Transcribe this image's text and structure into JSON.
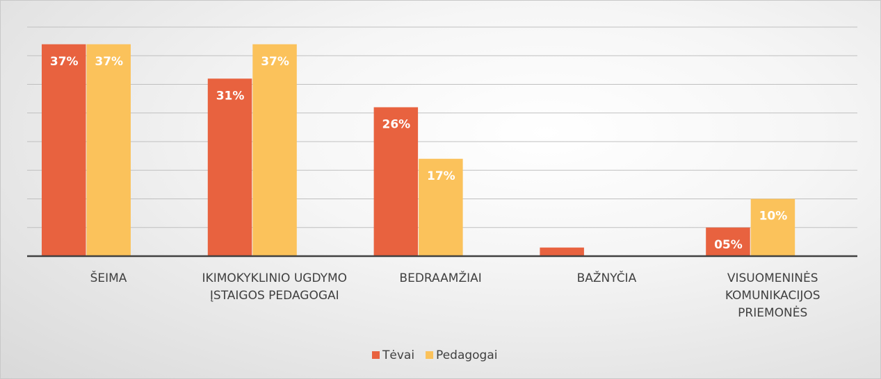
{
  "chart_data": {
    "type": "bar",
    "categories": [
      "ŠEIMA",
      "IKIMOKYKLINIO UGDYMO ĮSTAIGOS PEDAGOGAI",
      "BEDRAAMŽIAI",
      "BAŽNYČIA",
      "VISUOMENINĖS KOMUNIKACIJOS PRIEMONĖS"
    ],
    "series": [
      {
        "name": "Tėvai",
        "color": "#e8623f",
        "values": [
          37,
          31,
          26,
          1.5,
          5
        ],
        "value_labels": [
          "37%",
          "31%",
          "26%",
          null,
          "05%"
        ]
      },
      {
        "name": "Pedagogai",
        "color": "#fbc25b",
        "values": [
          37,
          37,
          17,
          0,
          10
        ],
        "value_labels": [
          "37%",
          "37%",
          "17%",
          null,
          "10%"
        ]
      }
    ],
    "ylim": [
      0,
      40
    ],
    "yticks": [
      0,
      5,
      10,
      15,
      20,
      25,
      30,
      35,
      40
    ],
    "grid": true,
    "legend": "bottom"
  }
}
